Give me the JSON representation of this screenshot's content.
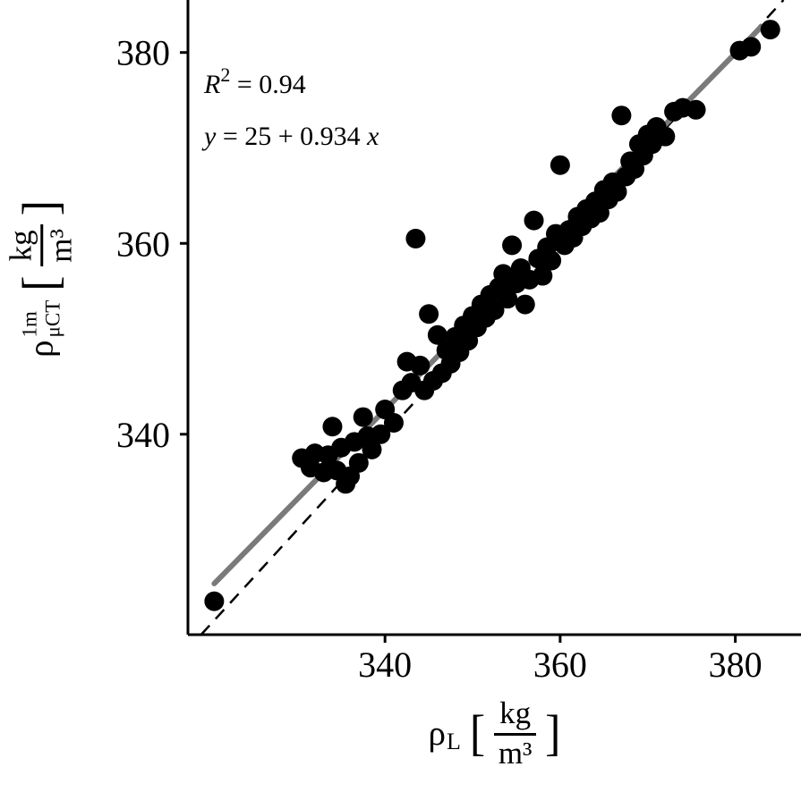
{
  "chart_data": {
    "type": "scatter",
    "title": "",
    "xlabel": "ρ_L [kg/m³]",
    "ylabel": "ρ_μCT^1m [kg/m³]",
    "xlim": [
      317.5,
      387.5
    ],
    "ylim": [
      319,
      385.5
    ],
    "xticks": [
      340,
      360,
      380
    ],
    "yticks": [
      340,
      360,
      380
    ],
    "grid": false,
    "legend_position": "none",
    "r_squared": 0.94,
    "equation": "y = 25 + 0.934 x",
    "annotations": {
      "r2_base": "R",
      "r2_exponent": "2",
      "r2_value": " = 0.94",
      "eq_lhs": "y",
      "eq_mid": " = 25 + 0.934 ",
      "eq_rhs": "x"
    },
    "axis_labels": {
      "y": {
        "symbol": "ρ",
        "superscript": "1m",
        "subscript": "μCT",
        "bracket_open": "[",
        "numerator": "kg",
        "denominator": "m³",
        "bracket_close": "]"
      },
      "x": {
        "symbol": "ρ",
        "subscript": "L",
        "bracket_open": "[",
        "numerator": "kg",
        "denominator": "m³",
        "bracket_close": "]"
      }
    },
    "identity_line": {
      "style": "dashed",
      "color": "#000000",
      "width": 2.5,
      "dash": [
        14,
        10
      ]
    },
    "regression_line": {
      "intercept": 25,
      "slope": 0.934,
      "x_range": [
        320.5,
        383
      ],
      "color": "#7a7a7a",
      "width": 6
    },
    "points_style": {
      "color": "#000000",
      "radius": 11
    },
    "points": [
      [
        320.5,
        322.5
      ],
      [
        330.5,
        337.5
      ],
      [
        331.5,
        336.5
      ],
      [
        332.0,
        338.0
      ],
      [
        333.0,
        336.0
      ],
      [
        333.5,
        337.8
      ],
      [
        334.0,
        340.8
      ],
      [
        334.5,
        336.2
      ],
      [
        335.0,
        338.6
      ],
      [
        335.5,
        334.8
      ],
      [
        336.0,
        335.6
      ],
      [
        336.5,
        339.2
      ],
      [
        337.0,
        337.0
      ],
      [
        337.5,
        341.8
      ],
      [
        338.0,
        339.8
      ],
      [
        338.5,
        338.4
      ],
      [
        339.5,
        340.0
      ],
      [
        340.0,
        342.6
      ],
      [
        341.0,
        341.2
      ],
      [
        342.0,
        344.6
      ],
      [
        342.5,
        347.6
      ],
      [
        343.0,
        345.4
      ],
      [
        343.5,
        360.5
      ],
      [
        344.0,
        347.2
      ],
      [
        344.5,
        344.6
      ],
      [
        345.0,
        352.6
      ],
      [
        345.5,
        345.6
      ],
      [
        346.0,
        350.4
      ],
      [
        346.5,
        346.4
      ],
      [
        347.0,
        348.8
      ],
      [
        347.5,
        347.4
      ],
      [
        348.0,
        350.2
      ],
      [
        348.5,
        348.6
      ],
      [
        349.0,
        351.4
      ],
      [
        349.5,
        349.8
      ],
      [
        350.0,
        352.4
      ],
      [
        350.5,
        351.2
      ],
      [
        351.0,
        353.6
      ],
      [
        351.5,
        352.2
      ],
      [
        352.0,
        354.6
      ],
      [
        352.5,
        353.0
      ],
      [
        353.0,
        355.4
      ],
      [
        353.5,
        356.8
      ],
      [
        354.0,
        354.2
      ],
      [
        354.5,
        359.8
      ],
      [
        355.0,
        355.8
      ],
      [
        355.5,
        357.4
      ],
      [
        356.0,
        353.6
      ],
      [
        356.5,
        356.2
      ],
      [
        357.0,
        362.4
      ],
      [
        357.5,
        358.4
      ],
      [
        358.0,
        356.6
      ],
      [
        358.5,
        359.6
      ],
      [
        359.0,
        358.2
      ],
      [
        359.5,
        361.0
      ],
      [
        360.0,
        368.2
      ],
      [
        360.5,
        359.8
      ],
      [
        361.0,
        361.4
      ],
      [
        361.5,
        360.6
      ],
      [
        362.0,
        362.8
      ],
      [
        362.5,
        361.8
      ],
      [
        363.0,
        363.6
      ],
      [
        363.5,
        362.6
      ],
      [
        364.0,
        364.4
      ],
      [
        364.5,
        363.2
      ],
      [
        365.0,
        365.6
      ],
      [
        365.5,
        364.6
      ],
      [
        366.0,
        366.4
      ],
      [
        366.5,
        365.4
      ],
      [
        367.0,
        373.4
      ],
      [
        367.5,
        367.0
      ],
      [
        368.0,
        368.6
      ],
      [
        368.5,
        367.8
      ],
      [
        369.0,
        370.4
      ],
      [
        369.5,
        369.2
      ],
      [
        370.0,
        371.4
      ],
      [
        370.5,
        370.4
      ],
      [
        371.0,
        372.2
      ],
      [
        372.0,
        371.2
      ],
      [
        373.0,
        373.8
      ],
      [
        374.0,
        374.2
      ],
      [
        375.5,
        374.0
      ],
      [
        380.5,
        380.2
      ],
      [
        381.8,
        380.6
      ],
      [
        384.0,
        382.4
      ]
    ]
  }
}
